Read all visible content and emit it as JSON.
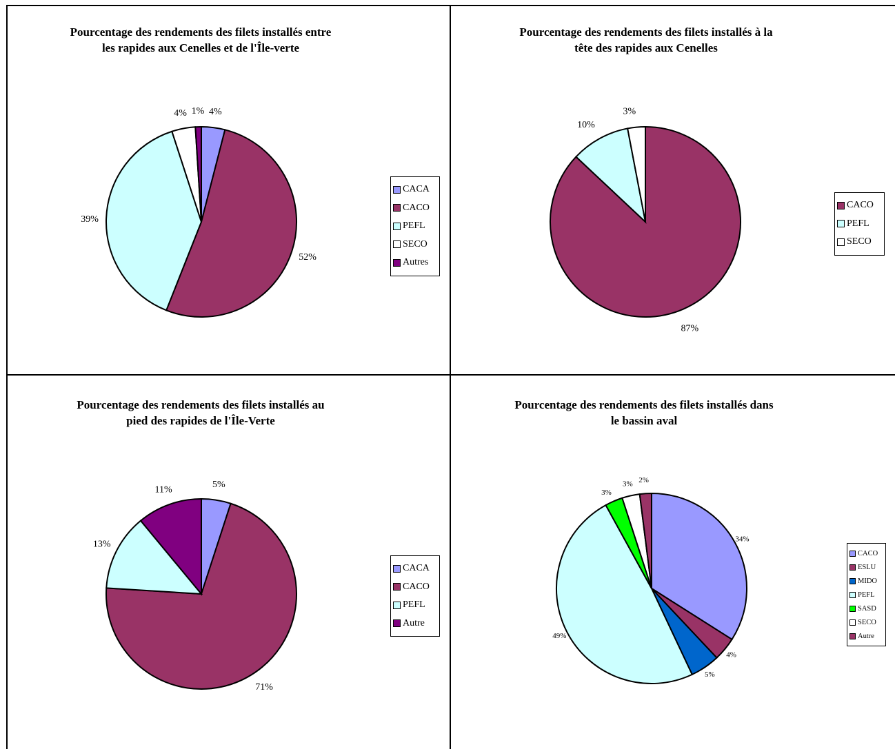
{
  "chart_data": [
    {
      "type": "pie",
      "title_line1": "Pourcentage des rendements des filets installés entre",
      "title_line2": "les rapides aux Cenelles et de l'Île-verte",
      "legend_placement": "right",
      "slices": [
        {
          "label": "CACA",
          "value": 4,
          "display": "4%",
          "color": "#9999ff"
        },
        {
          "label": "CACO",
          "value": 52,
          "display": "52%",
          "color": "#993366"
        },
        {
          "label": "PEFL",
          "value": 39,
          "display": "39%",
          "color": "#ccffff"
        },
        {
          "label": "SECO",
          "value": 4,
          "display": "4%",
          "color": "#ffffff"
        },
        {
          "label": "Autres",
          "value": 1,
          "display": "1%",
          "color": "#800080"
        }
      ]
    },
    {
      "type": "pie",
      "title_line1": "Pourcentage des rendements des filets installés à la",
      "title_line2": "tête des rapides aux Cenelles",
      "legend_placement": "right",
      "slices": [
        {
          "label": "CACO",
          "value": 87,
          "display": "87%",
          "color": "#993366"
        },
        {
          "label": "PEFL",
          "value": 10,
          "display": "10%",
          "color": "#ccffff"
        },
        {
          "label": "SECO",
          "value": 3,
          "display": "3%",
          "color": "#ffffff"
        }
      ]
    },
    {
      "type": "pie",
      "title_line1": "Pourcentage des rendements des filets installés au",
      "title_line2": "pied des rapides de l'Île-Verte",
      "legend_placement": "right",
      "slices": [
        {
          "label": "CACA",
          "value": 5,
          "display": "5%",
          "color": "#9999ff"
        },
        {
          "label": "CACO",
          "value": 71,
          "display": "71%",
          "color": "#993366"
        },
        {
          "label": "PEFL",
          "value": 13,
          "display": "13%",
          "color": "#ccffff"
        },
        {
          "label": "Autre",
          "value": 11,
          "display": "11%",
          "color": "#800080"
        }
      ]
    },
    {
      "type": "pie",
      "title_line1": "Pourcentage des rendements des filets installés dans",
      "title_line2": "le bassin aval",
      "legend_placement": "right",
      "slices": [
        {
          "label": "CACO",
          "value": 34,
          "display": "34%",
          "color": "#9999ff"
        },
        {
          "label": "ESLU",
          "value": 4,
          "display": "4%",
          "color": "#993366"
        },
        {
          "label": "MIDO",
          "value": 5,
          "display": "5%",
          "color": "#0066cc"
        },
        {
          "label": "PEFL",
          "value": 49,
          "display": "49%",
          "color": "#ccffff"
        },
        {
          "label": "SASD",
          "value": 3,
          "display": "3%",
          "color": "#00ff00"
        },
        {
          "label": "SECO",
          "value": 3,
          "display": "3%",
          "color": "#ffffff"
        },
        {
          "label": "Autre",
          "value": 2,
          "display": "2%",
          "color": "#993366"
        }
      ]
    }
  ]
}
